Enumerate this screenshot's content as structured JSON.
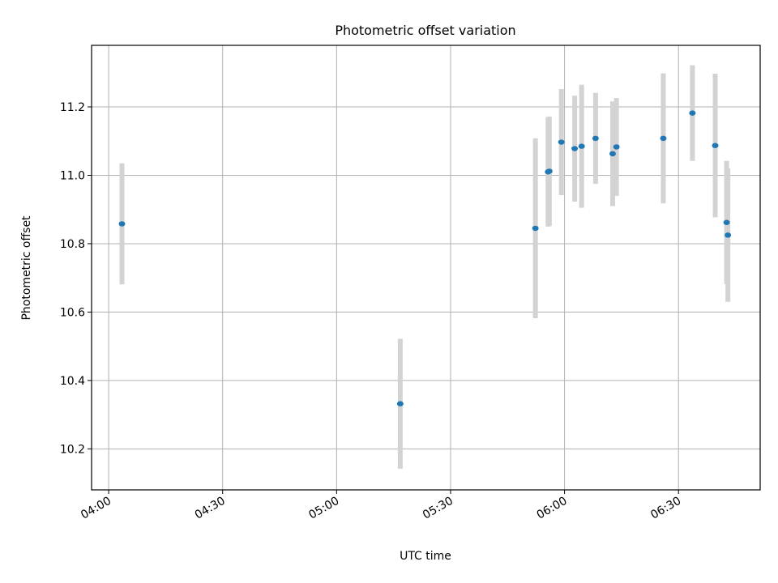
{
  "chart_data": {
    "type": "scatter",
    "title": "Photometric offset variation",
    "xlabel": "UTC time",
    "ylabel": "Photometric offset",
    "x_ticks": [
      "04:00",
      "04:30",
      "05:00",
      "05:30",
      "06:00",
      "06:30"
    ],
    "y_ticks": [
      "10.2",
      "10.4",
      "10.6",
      "10.8",
      "11.0",
      "11.2"
    ],
    "xlim": [
      "03:55:30",
      "06:51:30"
    ],
    "ylim": [
      10.08,
      11.38
    ],
    "grid": true,
    "marker_color": "#1f77b4",
    "errorbar_color": "#d3d3d3",
    "points": [
      {
        "time": "04:03:30",
        "y": 10.858,
        "err": 0.177
      },
      {
        "time": "05:16:45",
        "y": 10.332,
        "err": 0.19
      },
      {
        "time": "05:52:20",
        "y": 10.845,
        "err": 0.263
      },
      {
        "time": "05:55:40",
        "y": 11.01,
        "err": 0.16
      },
      {
        "time": "05:56:00",
        "y": 11.012,
        "err": 0.16
      },
      {
        "time": "05:59:10",
        "y": 11.097,
        "err": 0.155
      },
      {
        "time": "06:02:40",
        "y": 11.078,
        "err": 0.155
      },
      {
        "time": "06:04:30",
        "y": 11.085,
        "err": 0.18
      },
      {
        "time": "06:08:10",
        "y": 11.108,
        "err": 0.133
      },
      {
        "time": "06:12:40",
        "y": 11.063,
        "err": 0.153
      },
      {
        "time": "06:13:40",
        "y": 11.083,
        "err": 0.143
      },
      {
        "time": "06:26:00",
        "y": 11.108,
        "err": 0.19
      },
      {
        "time": "06:33:40",
        "y": 11.182,
        "err": 0.14
      },
      {
        "time": "06:39:40",
        "y": 11.087,
        "err": 0.21
      },
      {
        "time": "06:42:40",
        "y": 10.862,
        "err": 0.18
      },
      {
        "time": "06:43:00",
        "y": 10.825,
        "err": 0.195
      }
    ]
  }
}
